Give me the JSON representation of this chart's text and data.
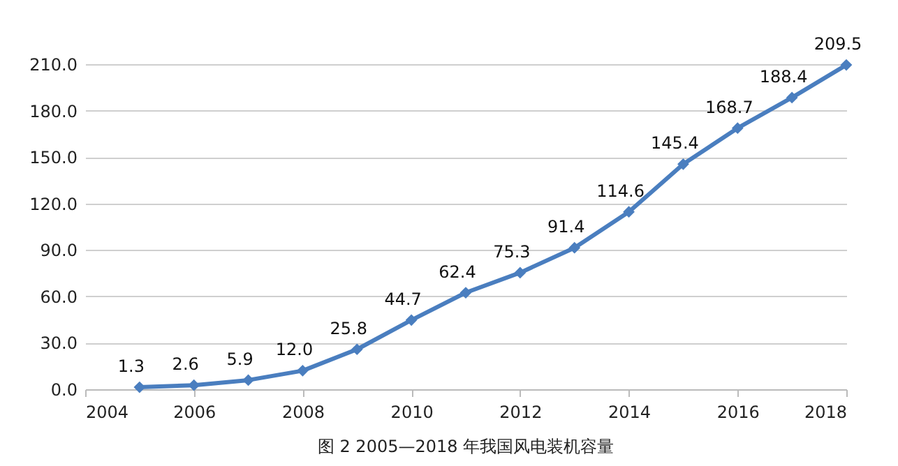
{
  "chart_data": {
    "type": "line",
    "x": [
      2005,
      2006,
      2007,
      2008,
      2009,
      2010,
      2011,
      2012,
      2013,
      2014,
      2015,
      2016,
      2017,
      2018
    ],
    "series": [
      {
        "color": "#4a7ebf",
        "values": [
          1.3,
          2.6,
          5.9,
          12.0,
          25.8,
          44.7,
          62.4,
          75.3,
          91.4,
          114.6,
          145.4,
          168.7,
          188.4,
          209.5
        ],
        "value_labels": [
          "1.3",
          "2.6",
          "5.9",
          "12.0",
          "25.8",
          "44.7",
          "62.4",
          "75.3",
          "91.4",
          "114.6",
          "145.4",
          "168.7",
          "188.4",
          "209.5"
        ]
      }
    ],
    "xlim": [
      2004,
      2018
    ],
    "xticks": [
      2004,
      2006,
      2008,
      2010,
      2012,
      2014,
      2016,
      2018
    ],
    "ylim": [
      0,
      210
    ],
    "yticks": [
      {
        "value": 0,
        "label": "0.0"
      },
      {
        "value": 30,
        "label": "30.0"
      },
      {
        "value": 60,
        "label": "60.0"
      },
      {
        "value": 90,
        "label": "90.0"
      },
      {
        "value": 120,
        "label": "120.0"
      },
      {
        "value": 150,
        "label": "150.0"
      },
      {
        "value": 180,
        "label": "180.0"
      },
      {
        "value": 210,
        "label": "210.0"
      }
    ],
    "grid": "y",
    "marker": "diamond",
    "line_style": "solid",
    "legend": false,
    "annotations": [
      "图 2 2005—2018 年我国风电装机容量"
    ]
  }
}
